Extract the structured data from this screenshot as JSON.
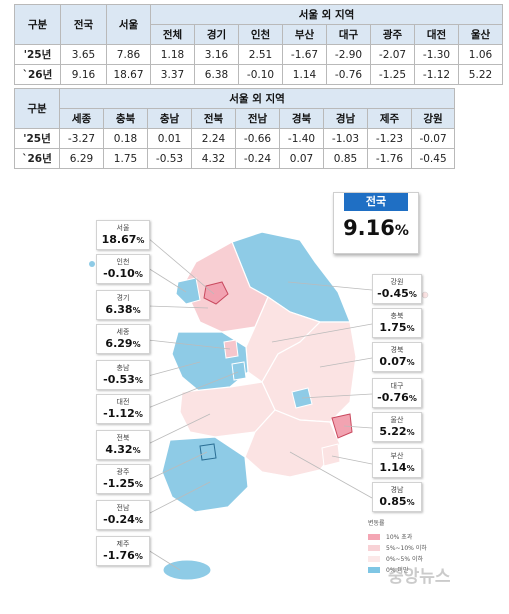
{
  "table1": {
    "col_gubun": "구분",
    "col_nation": "전국",
    "col_seoul": "서울",
    "col_outside": "서울 외 지역",
    "subcols": [
      "전체",
      "경기",
      "인천",
      "부산",
      "대구",
      "광주",
      "대전",
      "울산"
    ],
    "rows": [
      {
        "label": "'25년",
        "values": [
          "3.65",
          "7.86",
          "1.18",
          "3.16",
          "2.51",
          "-1.67",
          "-2.90",
          "-2.07",
          "-1.30",
          "1.06"
        ]
      },
      {
        "label": "`26년",
        "values": [
          "9.16",
          "18.67",
          "3.37",
          "6.38",
          "-0.10",
          "1.14",
          "-0.76",
          "-1.25",
          "-1.12",
          "5.22"
        ]
      }
    ]
  },
  "table2": {
    "col_gubun": "구분",
    "col_outside": "서울 외 지역",
    "subcols": [
      "세종",
      "충북",
      "충남",
      "전북",
      "전남",
      "경북",
      "경남",
      "제주",
      "강원"
    ],
    "rows": [
      {
        "label": "'25년",
        "values": [
          "-3.27",
          "0.18",
          "0.01",
          "2.24",
          "-0.66",
          "-1.40",
          "-1.03",
          "-1.23",
          "-0.07"
        ]
      },
      {
        "label": "`26년",
        "values": [
          "6.29",
          "1.75",
          "-0.53",
          "4.32",
          "-0.24",
          "0.07",
          "0.85",
          "-1.76",
          "-0.45"
        ]
      }
    ]
  },
  "national": {
    "label": "전국",
    "value": "9.16",
    "unit": "%"
  },
  "regions_left": [
    {
      "name": "서울",
      "value": "18.67",
      "unit": "%"
    },
    {
      "name": "인천",
      "value": "-0.10",
      "unit": "%"
    },
    {
      "name": "경기",
      "value": "6.38",
      "unit": "%"
    },
    {
      "name": "세종",
      "value": "6.29",
      "unit": "%"
    },
    {
      "name": "충남",
      "value": "-0.53",
      "unit": "%"
    },
    {
      "name": "대전",
      "value": "-1.12",
      "unit": "%"
    },
    {
      "name": "전북",
      "value": "4.32",
      "unit": "%"
    },
    {
      "name": "광주",
      "value": "-1.25",
      "unit": "%"
    },
    {
      "name": "전남",
      "value": "-0.24",
      "unit": "%"
    },
    {
      "name": "제주",
      "value": "-1.76",
      "unit": "%"
    }
  ],
  "regions_right": [
    {
      "name": "강원",
      "value": "-0.45",
      "unit": "%"
    },
    {
      "name": "충북",
      "value": "1.75",
      "unit": "%"
    },
    {
      "name": "경북",
      "value": "0.07",
      "unit": "%"
    },
    {
      "name": "대구",
      "value": "-0.76",
      "unit": "%"
    },
    {
      "name": "울산",
      "value": "5.22",
      "unit": "%"
    },
    {
      "name": "부산",
      "value": "1.14",
      "unit": "%"
    },
    {
      "name": "경남",
      "value": "0.85",
      "unit": "%"
    }
  ],
  "legend": {
    "title": "변동률",
    "items": [
      {
        "label": "10% 초과",
        "color": "#f4a6b4"
      },
      {
        "label": "5%~10% 이하",
        "color": "#f8d2d6"
      },
      {
        "label": "0%~5% 이하",
        "color": "#fbe8e8"
      },
      {
        "label": "0% 미만",
        "color": "#7fc6e4"
      }
    ]
  },
  "watermark": "중앙뉴스",
  "colors": {
    "header_bg": "#dbe7f3",
    "negative_blue": "#8ecbe6",
    "light_pink": "#fbe3e3",
    "mid_pink": "#f6c6cc",
    "strong_pink": "#f2a3b1",
    "national_blue": "#1f6fc4"
  }
}
